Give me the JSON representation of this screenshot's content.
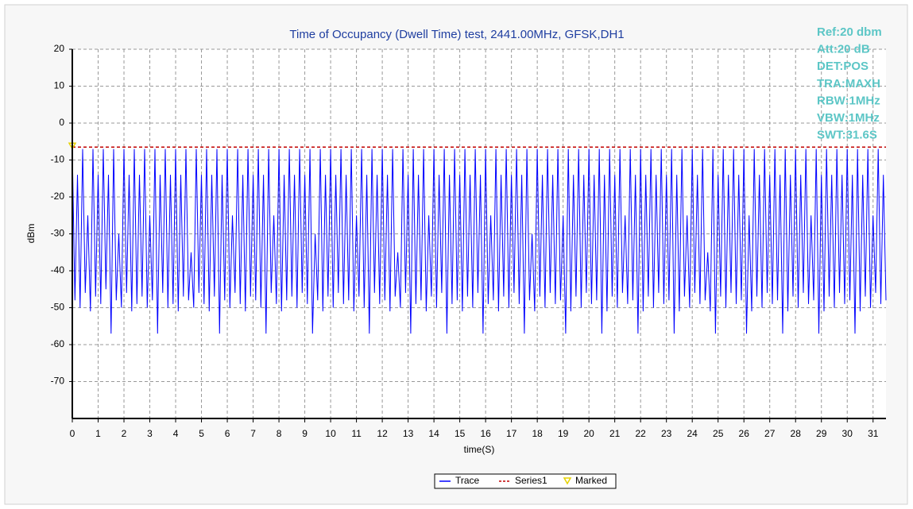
{
  "chart_data": {
    "type": "line",
    "title": "Time of Occupancy (Dwell Time) test, 2441.00MHz, GFSK,DH1",
    "x_label": "time(S)",
    "y_label": "dBm",
    "annotations": [
      "Ref:20 dbm",
      "Att:20 dB",
      "DET:POS",
      "TRA:MAXH",
      "RBW:1MHz",
      "VBW:1MHz",
      "SWT:31.6S"
    ],
    "xlim": [
      0,
      31.5
    ],
    "ylim": [
      -80,
      20
    ],
    "xticks": [
      0,
      1,
      2,
      3,
      4,
      5,
      6,
      7,
      8,
      9,
      10,
      11,
      12,
      13,
      14,
      15,
      16,
      17,
      18,
      19,
      20,
      21,
      22,
      23,
      24,
      25,
      26,
      27,
      28,
      29,
      30,
      31
    ],
    "yticks": [
      20,
      10,
      0,
      -10,
      -20,
      -30,
      -40,
      -50,
      -60,
      -70
    ],
    "grid": true,
    "series": [
      {
        "name": "Trace",
        "color": "#0000ff",
        "x": [
          0,
          0.1,
          0.2,
          0.3,
          0.4,
          0.5,
          0.6,
          0.7,
          0.8,
          0.9,
          1,
          1.1,
          1.2,
          1.3,
          1.4,
          1.5,
          1.6,
          1.7,
          1.8,
          1.9,
          2,
          2.1,
          2.2,
          2.3,
          2.4,
          2.5,
          2.6,
          2.7,
          2.8,
          2.9,
          3,
          3.1,
          3.2,
          3.3,
          3.4,
          3.5,
          3.6,
          3.7,
          3.8,
          3.9,
          4,
          4.1,
          4.2,
          4.3,
          4.4,
          4.5,
          4.6,
          4.7,
          4.8,
          4.9,
          5,
          5.1,
          5.2,
          5.3,
          5.4,
          5.5,
          5.6,
          5.7,
          5.8,
          5.9,
          6,
          6.1,
          6.2,
          6.3,
          6.4,
          6.5,
          6.6,
          6.7,
          6.8,
          6.9,
          7,
          7.1,
          7.2,
          7.3,
          7.4,
          7.5,
          7.6,
          7.7,
          7.8,
          7.9,
          8,
          8.1,
          8.2,
          8.3,
          8.4,
          8.5,
          8.6,
          8.7,
          8.8,
          8.9,
          9,
          9.1,
          9.2,
          9.3,
          9.4,
          9.5,
          9.6,
          9.7,
          9.8,
          9.9,
          10,
          10.1,
          10.2,
          10.3,
          10.4,
          10.5,
          10.6,
          10.7,
          10.8,
          10.9,
          11,
          11.1,
          11.2,
          11.3,
          11.4,
          11.5,
          11.6,
          11.7,
          11.8,
          11.9,
          12,
          12.1,
          12.2,
          12.3,
          12.4,
          12.5,
          12.6,
          12.7,
          12.8,
          12.9,
          13,
          13.1,
          13.2,
          13.3,
          13.4,
          13.5,
          13.6,
          13.7,
          13.8,
          13.9,
          14,
          14.1,
          14.2,
          14.3,
          14.4,
          14.5,
          14.6,
          14.7,
          14.8,
          14.9,
          15,
          15.1,
          15.2,
          15.3,
          15.4,
          15.5,
          15.6,
          15.7,
          15.8,
          15.9,
          16,
          16.1,
          16.2,
          16.3,
          16.4,
          16.5,
          16.6,
          16.7,
          16.8,
          16.9,
          17,
          17.1,
          17.2,
          17.3,
          17.4,
          17.5,
          17.6,
          17.7,
          17.8,
          17.9,
          18,
          18.1,
          18.2,
          18.3,
          18.4,
          18.5,
          18.6,
          18.7,
          18.8,
          18.9,
          19,
          19.1,
          19.2,
          19.3,
          19.4,
          19.5,
          19.6,
          19.7,
          19.8,
          19.9,
          20,
          20.1,
          20.2,
          20.3,
          20.4,
          20.5,
          20.6,
          20.7,
          20.8,
          20.9,
          21,
          21.1,
          21.2,
          21.3,
          21.4,
          21.5,
          21.6,
          21.7,
          21.8,
          21.9,
          22,
          22.1,
          22.2,
          22.3,
          22.4,
          22.5,
          22.6,
          22.7,
          22.8,
          22.9,
          23,
          23.1,
          23.2,
          23.3,
          23.4,
          23.5,
          23.6,
          23.7,
          23.8,
          23.9,
          24,
          24.1,
          24.2,
          24.3,
          24.4,
          24.5,
          24.6,
          24.7,
          24.8,
          24.9,
          25,
          25.1,
          25.2,
          25.3,
          25.4,
          25.5,
          25.6,
          25.7,
          25.8,
          25.9,
          26,
          26.1,
          26.2,
          26.3,
          26.4,
          26.5,
          26.6,
          26.7,
          26.8,
          26.9,
          27,
          27.1,
          27.2,
          27.3,
          27.4,
          27.5,
          27.6,
          27.7,
          27.8,
          27.9,
          28,
          28.1,
          28.2,
          28.3,
          28.4,
          28.5,
          28.6,
          28.7,
          28.8,
          28.9,
          29,
          29.1,
          29.2,
          29.3,
          29.4,
          29.5,
          29.6,
          29.7,
          29.8,
          29.9,
          30,
          30.1,
          30.2,
          30.3,
          30.4,
          30.5,
          30.6,
          30.7,
          30.8,
          30.9,
          31,
          31.1,
          31.2,
          31.3,
          31.4,
          31.5
        ],
        "values": [
          -7,
          -48,
          -14,
          -50,
          -7,
          -46,
          -25,
          -51,
          -7,
          -47,
          -14,
          -49,
          -7,
          -45,
          -14,
          -57,
          -7,
          -48,
          -30,
          -50,
          -7,
          -46,
          -14,
          -51,
          -7,
          -49,
          -14,
          -47,
          -7,
          -50,
          -25,
          -48,
          -7,
          -57,
          -14,
          -46,
          -7,
          -50,
          -14,
          -49,
          -7,
          -51,
          -14,
          -47,
          -7,
          -48,
          -35,
          -50,
          -7,
          -46,
          -14,
          -49,
          -7,
          -51,
          -14,
          -47,
          -7,
          -57,
          -14,
          -48,
          -7,
          -50,
          -25,
          -46,
          -7,
          -49,
          -14,
          -51,
          -7,
          -47,
          -14,
          -48,
          -7,
          -50,
          -14,
          -57,
          -7,
          -46,
          -25,
          -49,
          -7,
          -51,
          -14,
          -48,
          -7,
          -47,
          -14,
          -50,
          -7,
          -46,
          -14,
          -49,
          -7,
          -57,
          -30,
          -48,
          -7,
          -51,
          -14,
          -47,
          -7,
          -50,
          -14,
          -46,
          -7,
          -49,
          -14,
          -48,
          -7,
          -51,
          -25,
          -47,
          -7,
          -50,
          -14,
          -57,
          -7,
          -46,
          -14,
          -49,
          -7,
          -48,
          -14,
          -51,
          -7,
          -47,
          -35,
          -50,
          -7,
          -46,
          -14,
          -57,
          -7,
          -49,
          -14,
          -48,
          -7,
          -51,
          -25,
          -47,
          -7,
          -50,
          -14,
          -46,
          -7,
          -57,
          -14,
          -49,
          -7,
          -48,
          -14,
          -51,
          -7,
          -47,
          -14,
          -50,
          -7,
          -46,
          -14,
          -57,
          -7,
          -49,
          -25,
          -48,
          -7,
          -51,
          -14,
          -47,
          -7,
          -50,
          -14,
          -46,
          -7,
          -49,
          -14,
          -57,
          -7,
          -48,
          -30,
          -51,
          -7,
          -47,
          -14,
          -50,
          -7,
          -46,
          -14,
          -49,
          -7,
          -48,
          -25,
          -57,
          -7,
          -51,
          -14,
          -47,
          -7,
          -50,
          -14,
          -46,
          -7,
          -49,
          -14,
          -48,
          -7,
          -57,
          -14,
          -51,
          -7,
          -47,
          -14,
          -50,
          -7,
          -46,
          -25,
          -49,
          -7,
          -48,
          -14,
          -57,
          -7,
          -51,
          -14,
          -47,
          -7,
          -50,
          -14,
          -46,
          -7,
          -49,
          -14,
          -48,
          -7,
          -57,
          -14,
          -51,
          -7,
          -47,
          -25,
          -50,
          -7,
          -46,
          -14,
          -49,
          -7,
          -48,
          -35,
          -51,
          -7,
          -57,
          -14,
          -47,
          -7,
          -50,
          -14,
          -46,
          -7,
          -49,
          -14,
          -48,
          -7,
          -57,
          -25,
          -51,
          -7,
          -47,
          -14,
          -50,
          -7,
          -46,
          -14,
          -49,
          -7,
          -48,
          -14,
          -57,
          -7,
          -51,
          -14,
          -47,
          -7,
          -50,
          -14,
          -46,
          -7,
          -49,
          -25,
          -48,
          -7,
          -57,
          -14,
          -51,
          -7,
          -47,
          -14,
          -50,
          -7,
          -46,
          -14,
          -49,
          -7,
          -48,
          -14,
          -57,
          -7,
          -51,
          -14,
          -47,
          -7,
          -50,
          -25,
          -46,
          -7,
          -49,
          -14,
          -48
        ]
      },
      {
        "name": "Series1",
        "color": "#c00000",
        "x": [
          0,
          31.5
        ],
        "values": [
          -6.5,
          -6.5
        ]
      },
      {
        "name": "Marked",
        "color": "#e6d200",
        "x": [
          0
        ],
        "values": [
          -6.5
        ]
      }
    ]
  }
}
